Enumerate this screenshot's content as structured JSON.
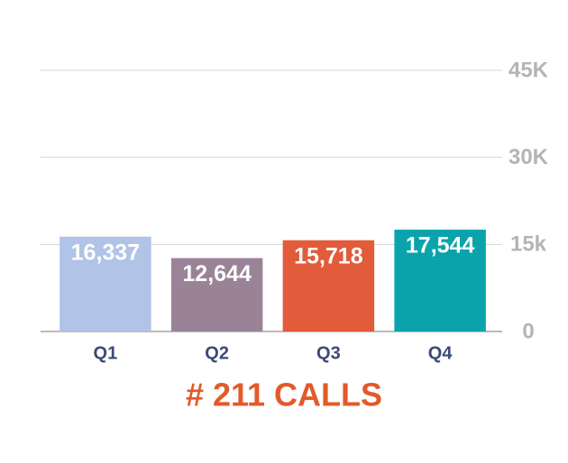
{
  "chart_data": {
    "type": "bar",
    "title": "# 211 CALLS",
    "categories": [
      "Q1",
      "Q2",
      "Q3",
      "Q4"
    ],
    "values": [
      16337,
      12644,
      15718,
      17544
    ],
    "value_labels": [
      "16,337",
      "12,644",
      "15,718",
      "17,544"
    ],
    "colors": [
      "#b1c3e6",
      "#9b8397",
      "#e25b3b",
      "#0aa3ab"
    ],
    "ylim": [
      0,
      45000
    ],
    "yticks": [
      0,
      {
        "value": 15000,
        "label": "15k"
      },
      {
        "value": 30000,
        "label": "30K"
      },
      {
        "value": 45000,
        "label": "45K"
      }
    ],
    "grid": true
  }
}
